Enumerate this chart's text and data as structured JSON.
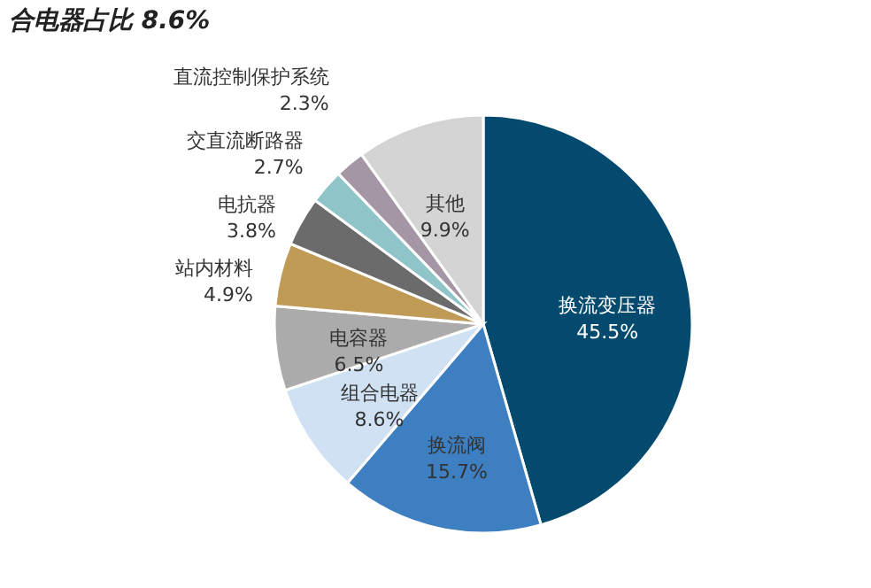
{
  "chart_data": {
    "type": "pie",
    "title": "合电器占比 8.6%",
    "categories": [
      "换流变压器",
      "换流阀",
      "组合电器",
      "电容器",
      "站内材料",
      "电抗器",
      "交直流断路器",
      "直流控制保护系统",
      "其他"
    ],
    "values": [
      45.5,
      15.7,
      8.6,
      6.5,
      4.9,
      3.8,
      2.7,
      2.3,
      9.9
    ],
    "colors": [
      "#044a6e",
      "#3d7fc1",
      "#cfe1f2",
      "#ababab",
      "#bf9b56",
      "#6b6b6b",
      "#8fc4c9",
      "#a596a6",
      "#d4d4d4"
    ],
    "value_labels": [
      "45.5%",
      "15.7%",
      "8.6%",
      "6.5%",
      "4.9%",
      "3.8%",
      "2.7%",
      "2.3%",
      "9.9%"
    ],
    "legend": false
  }
}
